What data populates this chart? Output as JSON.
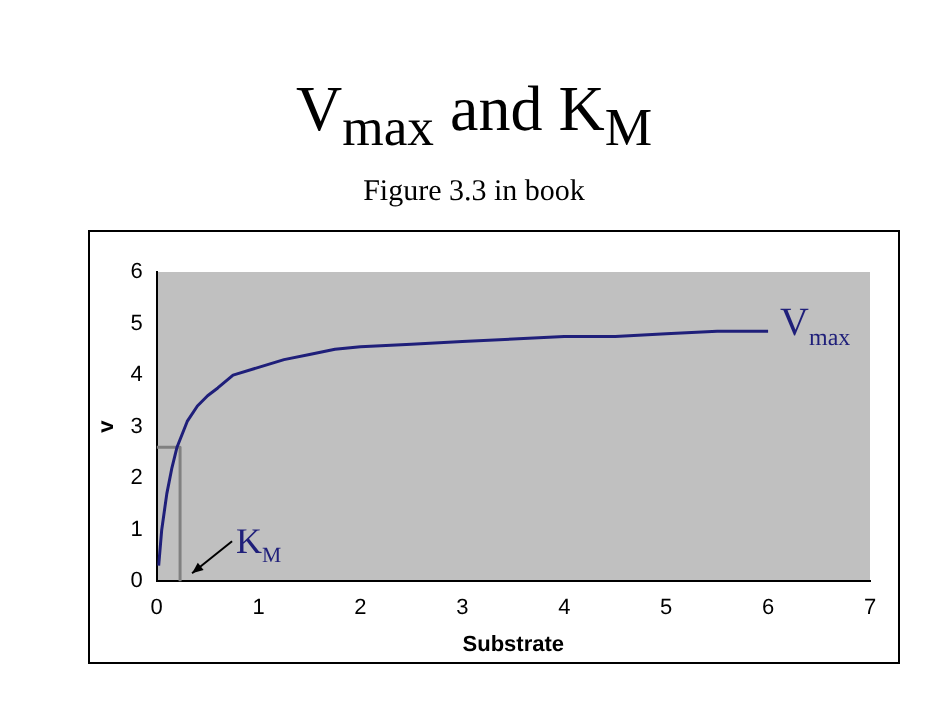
{
  "chart_data": {
    "type": "line",
    "title": "V$_{max}$ and K$_{M}$",
    "subtitle": "Figure 3.3 in book",
    "xlabel": "Substrate",
    "ylabel": "v",
    "xlim": [
      0,
      7
    ],
    "ylim": [
      0,
      6
    ],
    "xticks": [
      0,
      1,
      2,
      3,
      4,
      5,
      6,
      7
    ],
    "yticks": [
      0,
      1,
      2,
      3,
      4,
      5,
      6
    ],
    "grid": false,
    "legend": false,
    "marker": "none",
    "line_style": "solid",
    "series": [
      {
        "color": "#1f1f7a",
        "x": [
          0.02,
          0.05,
          0.1,
          0.15,
          0.2,
          0.3,
          0.4,
          0.5,
          0.6,
          0.75,
          1,
          1.25,
          1.5,
          1.75,
          2,
          2.5,
          3,
          3.5,
          4,
          4.5,
          5,
          5.5,
          6
        ],
        "values": [
          0.3,
          1.0,
          1.7,
          2.2,
          2.6,
          3.1,
          3.4,
          3.6,
          3.75,
          4.0,
          4.15,
          4.3,
          4.4,
          4.5,
          4.55,
          4.6,
          4.65,
          4.7,
          4.75,
          4.75,
          4.8,
          4.85,
          4.85
        ]
      },
      {
        "color": "#808080",
        "x": [
          0,
          0.23,
          0.23
        ],
        "values": [
          2.6,
          2.6,
          0
        ]
      }
    ],
    "annotations": [
      {
        "text": "V$_{max}$",
        "x": 6,
        "y": 4.85
      },
      {
        "text": "K$_{M}$",
        "x": 0.23,
        "y": 0
      }
    ]
  }
}
